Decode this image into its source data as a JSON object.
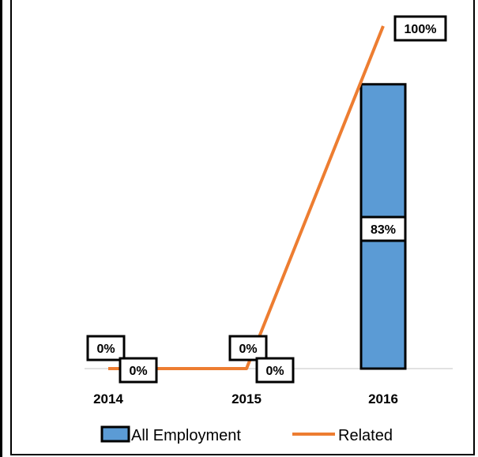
{
  "chart_data": {
    "type": "bar",
    "categories": [
      "2014",
      "2015",
      "2016"
    ],
    "series": [
      {
        "name": "All Employment",
        "kind": "bar",
        "color": "#5b9bd5",
        "values": [
          0,
          0,
          83
        ],
        "labels": [
          "0%",
          "0%",
          "83%"
        ]
      },
      {
        "name": "Related",
        "kind": "line",
        "color": "#ed7d31",
        "values": [
          0,
          0,
          100
        ],
        "labels": [
          "0%",
          "0%",
          "100%"
        ]
      }
    ],
    "ylim": [
      0,
      100
    ],
    "grid": false,
    "legend_position": "bottom"
  }
}
